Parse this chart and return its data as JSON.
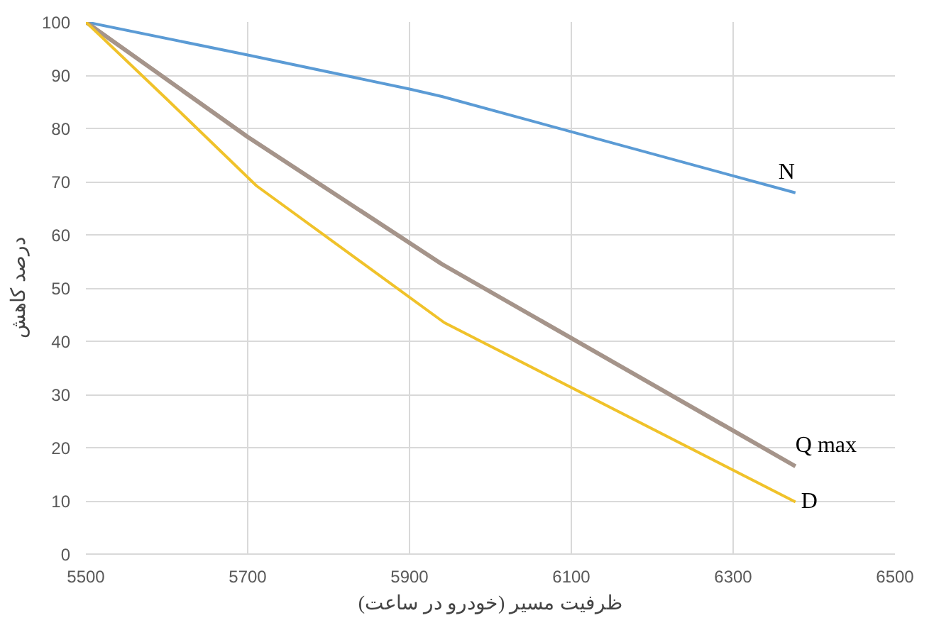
{
  "chart_data": {
    "type": "line",
    "xlabel": "ظرفیت مسیر (خودرو در ساعت)",
    "ylabel": "درصد کاهش",
    "xlim": [
      5500,
      6500
    ],
    "xticks": [
      5500,
      5700,
      5900,
      6100,
      6300,
      6500
    ],
    "ylim": [
      0,
      100
    ],
    "yticks": [
      0,
      10,
      20,
      30,
      40,
      50,
      60,
      70,
      80,
      90,
      100
    ],
    "grid": true,
    "series": [
      {
        "name": "N",
        "color": "#5b9bd5",
        "x": [
          5500,
          5700,
          5900,
          5940,
          6377
        ],
        "values": [
          100,
          93.8,
          87.4,
          86,
          67.9
        ]
      },
      {
        "name": "Q max",
        "color": "#a5948a",
        "x": [
          5500,
          5700,
          5940,
          6377
        ],
        "values": [
          100,
          78.4,
          54.5,
          16.5
        ]
      },
      {
        "name": "D",
        "color": "#f0c22a",
        "x": [
          5500,
          5600,
          5711,
          5943,
          6377
        ],
        "values": [
          100,
          85.5,
          69.2,
          43.5,
          9.8
        ]
      }
    ]
  }
}
